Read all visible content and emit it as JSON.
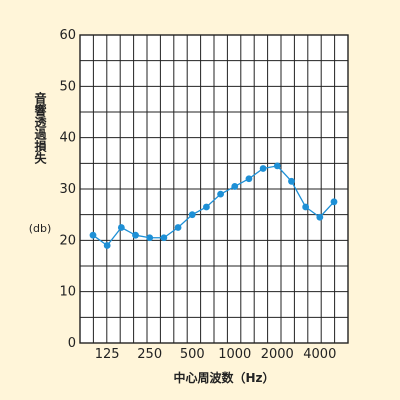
{
  "chart_data": {
    "type": "line",
    "title": "",
    "ylabel": "音響透過損失",
    "ylabel_unit": "(db)",
    "xlabel": "中心周波数（Hz）",
    "ylim": [
      0,
      60
    ],
    "yticks": [
      0,
      10,
      20,
      30,
      40,
      50,
      60
    ],
    "x_categories": [
      "100",
      "125",
      "160",
      "200",
      "250",
      "315",
      "400",
      "500",
      "630",
      "800",
      "1000",
      "1250",
      "1600",
      "2000",
      "2500",
      "3150",
      "4000",
      "5000"
    ],
    "x_tick_labels": [
      {
        "category": "125",
        "label": "125"
      },
      {
        "category": "250",
        "label": "250"
      },
      {
        "category": "500",
        "label": "500"
      },
      {
        "category": "1000",
        "label": "1000"
      },
      {
        "category": "2000",
        "label": "2000"
      },
      {
        "category": "4000",
        "label": "4000"
      }
    ],
    "grid": true,
    "line_color": "#1e90d6",
    "series": [
      {
        "values": [
          21,
          19,
          22.5,
          21,
          20.5,
          20.5,
          22.5,
          25,
          26.5,
          29,
          30.5,
          32,
          34,
          34.5,
          31.5,
          26.5,
          24.5,
          27.5
        ]
      }
    ]
  }
}
